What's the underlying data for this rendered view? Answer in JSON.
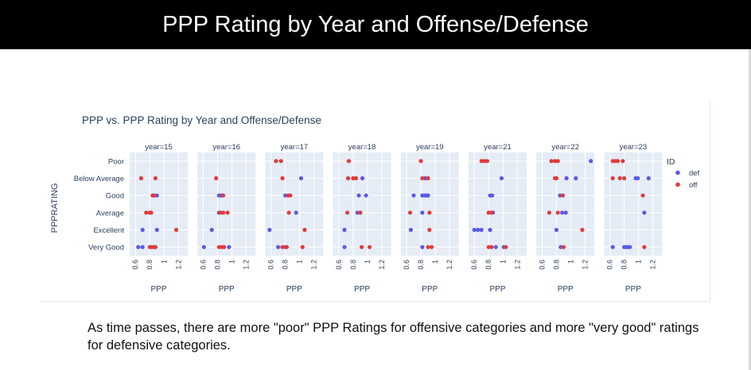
{
  "slide": {
    "title": "PPP Rating by Year and Offense/Defense",
    "caption": "As time passes, there are more \"poor\" PPP Ratings for offensive categories and more \"very good\" ratings for defensive categories."
  },
  "colors": {
    "def": "#5a5ae6",
    "off": "#e03b3b",
    "plot_bg": "#e5ecf6",
    "grid": "#ffffff",
    "text": "#2a3f5f"
  },
  "chart_data": {
    "type": "scatter",
    "title": "PPP vs. PPP Rating by Year and Offense/Defense",
    "xlabel": "PPP",
    "ylabel": "PPPRATING",
    "categories": [
      "Poor",
      "Below Average",
      "Good",
      "Average",
      "Excellent",
      "Very Good"
    ],
    "x_ticks": [
      "0.6",
      "0.8",
      "1",
      "1.2"
    ],
    "xlim": [
      0.52,
      1.33
    ],
    "legend": {
      "title": "ID",
      "position": "right",
      "entries": [
        "def",
        "off"
      ]
    },
    "grid": true,
    "panels": [
      {
        "label": "year=15",
        "series": [
          {
            "name": "def",
            "points": [
              [
                0.9,
                "Good"
              ],
              [
                0.7,
                "Excellent"
              ],
              [
                0.9,
                "Excellent"
              ],
              [
                0.64,
                "Very Good"
              ],
              [
                0.7,
                "Very Good"
              ],
              [
                0.86,
                "Very Good"
              ]
            ]
          },
          {
            "name": "off",
            "points": [
              [
                0.68,
                "Below Average"
              ],
              [
                0.88,
                "Below Average"
              ],
              [
                0.84,
                "Good"
              ],
              [
                0.86,
                "Good"
              ],
              [
                0.75,
                "Average"
              ],
              [
                0.8,
                "Average"
              ],
              [
                0.82,
                "Average"
              ],
              [
                1.17,
                "Excellent"
              ],
              [
                0.8,
                "Very Good"
              ],
              [
                0.83,
                "Very Good"
              ],
              [
                0.88,
                "Very Good"
              ]
            ]
          }
        ]
      },
      {
        "label": "year=16",
        "series": [
          {
            "name": "def",
            "points": [
              [
                0.82,
                "Good"
              ],
              [
                0.85,
                "Good"
              ],
              [
                0.82,
                "Average"
              ],
              [
                0.72,
                "Excellent"
              ],
              [
                0.61,
                "Very Good"
              ],
              [
                0.96,
                "Very Good"
              ]
            ]
          },
          {
            "name": "off",
            "points": [
              [
                0.78,
                "Below Average"
              ],
              [
                0.88,
                "Good"
              ],
              [
                0.84,
                "Average"
              ],
              [
                0.88,
                "Average"
              ],
              [
                0.94,
                "Average"
              ],
              [
                0.82,
                "Very Good"
              ],
              [
                0.86,
                "Very Good"
              ],
              [
                0.89,
                "Very Good"
              ]
            ]
          }
        ]
      },
      {
        "label": "year=17",
        "series": [
          {
            "name": "def",
            "points": [
              [
                1.02,
                "Below Average"
              ],
              [
                0.8,
                "Good"
              ],
              [
                0.95,
                "Average"
              ],
              [
                0.58,
                "Excellent"
              ],
              [
                0.7,
                "Very Good"
              ],
              [
                0.8,
                "Very Good"
              ]
            ]
          },
          {
            "name": "off",
            "points": [
              [
                0.67,
                "Poor"
              ],
              [
                0.74,
                "Poor"
              ],
              [
                0.76,
                "Below Average"
              ],
              [
                0.84,
                "Good"
              ],
              [
                0.87,
                "Good"
              ],
              [
                0.85,
                "Average"
              ],
              [
                1.07,
                "Excellent"
              ],
              [
                0.76,
                "Very Good"
              ],
              [
                0.82,
                "Very Good"
              ],
              [
                1.04,
                "Very Good"
              ]
            ]
          }
        ]
      },
      {
        "label": "year=18",
        "series": [
          {
            "name": "def",
            "points": [
              [
                0.93,
                "Below Average"
              ],
              [
                0.88,
                "Good"
              ],
              [
                0.98,
                "Good"
              ],
              [
                0.86,
                "Average"
              ],
              [
                0.9,
                "Average"
              ],
              [
                0.68,
                "Excellent"
              ],
              [
                0.68,
                "Very Good"
              ]
            ]
          },
          {
            "name": "off",
            "points": [
              [
                0.74,
                "Poor"
              ],
              [
                0.73,
                "Below Average"
              ],
              [
                0.8,
                "Below Average"
              ],
              [
                0.84,
                "Below Average"
              ],
              [
                0.72,
                "Average"
              ],
              [
                0.9,
                "Average"
              ],
              [
                0.92,
                "Very Good"
              ],
              [
                1.03,
                "Very Good"
              ]
            ]
          }
        ]
      },
      {
        "label": "year=19",
        "series": [
          {
            "name": "def",
            "points": [
              [
                0.86,
                "Below Average"
              ],
              [
                0.7,
                "Good"
              ],
              [
                0.82,
                "Good"
              ],
              [
                0.85,
                "Good"
              ],
              [
                0.88,
                "Good"
              ],
              [
                0.9,
                "Good"
              ],
              [
                0.82,
                "Average"
              ],
              [
                0.66,
                "Excellent"
              ],
              [
                0.82,
                "Very Good"
              ]
            ]
          },
          {
            "name": "off",
            "points": [
              [
                0.8,
                "Poor"
              ],
              [
                0.82,
                "Below Average"
              ],
              [
                0.9,
                "Below Average"
              ],
              [
                0.65,
                "Average"
              ],
              [
                0.92,
                "Average"
              ],
              [
                0.92,
                "Excellent"
              ],
              [
                0.9,
                "Very Good"
              ],
              [
                0.95,
                "Very Good"
              ]
            ]
          }
        ]
      },
      {
        "label": "year=21",
        "series": [
          {
            "name": "def",
            "points": [
              [
                0.98,
                "Below Average"
              ],
              [
                0.82,
                "Good"
              ],
              [
                0.85,
                "Good"
              ],
              [
                0.86,
                "Average"
              ],
              [
                0.6,
                "Excellent"
              ],
              [
                0.65,
                "Excellent"
              ],
              [
                0.7,
                "Excellent"
              ],
              [
                0.82,
                "Excellent"
              ],
              [
                0.9,
                "Very Good"
              ],
              [
                1.01,
                "Very Good"
              ]
            ]
          },
          {
            "name": "off",
            "points": [
              [
                0.7,
                "Poor"
              ],
              [
                0.74,
                "Poor"
              ],
              [
                0.78,
                "Poor"
              ],
              [
                0.8,
                "Average"
              ],
              [
                0.84,
                "Average"
              ],
              [
                0.8,
                "Very Good"
              ],
              [
                0.84,
                "Very Good"
              ],
              [
                1.04,
                "Very Good"
              ]
            ]
          }
        ]
      },
      {
        "label": "year=22",
        "series": [
          {
            "name": "def",
            "points": [
              [
                1.28,
                "Poor"
              ],
              [
                0.94,
                "Below Average"
              ],
              [
                1.07,
                "Below Average"
              ],
              [
                0.85,
                "Good"
              ],
              [
                0.88,
                "Average"
              ],
              [
                0.93,
                "Average"
              ],
              [
                0.8,
                "Excellent"
              ],
              [
                0.86,
                "Very Good"
              ]
            ]
          },
          {
            "name": "off",
            "points": [
              [
                0.73,
                "Poor"
              ],
              [
                0.78,
                "Poor"
              ],
              [
                0.82,
                "Poor"
              ],
              [
                0.78,
                "Below Average"
              ],
              [
                0.8,
                "Below Average"
              ],
              [
                0.89,
                "Good"
              ],
              [
                0.7,
                "Average"
              ],
              [
                0.82,
                "Average"
              ],
              [
                1.16,
                "Excellent"
              ],
              [
                0.9,
                "Very Good"
              ]
            ]
          }
        ]
      },
      {
        "label": "year=23",
        "series": [
          {
            "name": "def",
            "points": [
              [
                0.96,
                "Below Average"
              ],
              [
                0.99,
                "Below Average"
              ],
              [
                1.14,
                "Below Average"
              ],
              [
                1.08,
                "Average"
              ],
              [
                0.64,
                "Very Good"
              ],
              [
                0.8,
                "Very Good"
              ],
              [
                0.82,
                "Very Good"
              ],
              [
                0.85,
                "Very Good"
              ],
              [
                0.88,
                "Very Good"
              ]
            ]
          },
          {
            "name": "off",
            "points": [
              [
                0.64,
                "Poor"
              ],
              [
                0.68,
                "Poor"
              ],
              [
                0.71,
                "Poor"
              ],
              [
                0.78,
                "Poor"
              ],
              [
                0.64,
                "Below Average"
              ],
              [
                0.74,
                "Below Average"
              ],
              [
                0.8,
                "Below Average"
              ],
              [
                1.06,
                "Good"
              ],
              [
                1.08,
                "Very Good"
              ]
            ]
          }
        ]
      }
    ]
  }
}
